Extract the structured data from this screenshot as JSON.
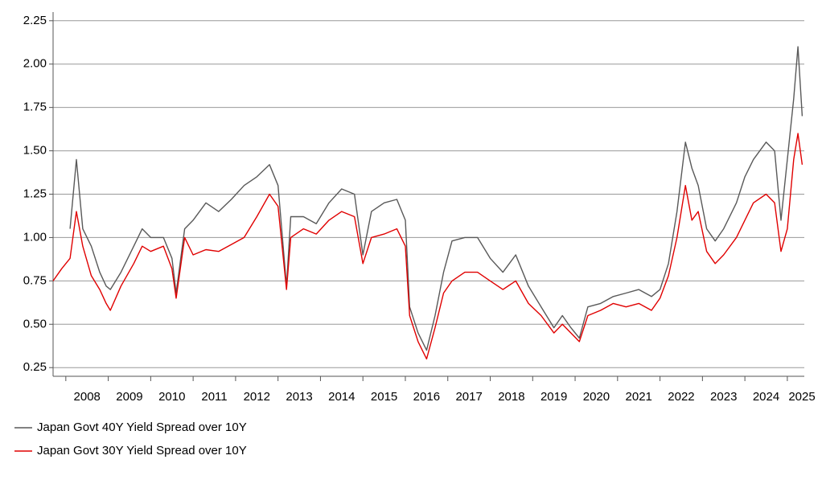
{
  "chart_data": {
    "type": "line",
    "x": [
      2007.7,
      2007.9,
      2008.1,
      2008.25,
      2008.4,
      2008.6,
      2008.8,
      2008.95,
      2009.05,
      2009.3,
      2009.6,
      2009.8,
      2010.0,
      2010.3,
      2010.5,
      2010.6,
      2010.8,
      2011.0,
      2011.3,
      2011.6,
      2011.9,
      2012.2,
      2012.5,
      2012.8,
      2013.0,
      2013.2,
      2013.3,
      2013.6,
      2013.9,
      2014.2,
      2014.5,
      2014.8,
      2015.0,
      2015.2,
      2015.5,
      2015.8,
      2016.0,
      2016.1,
      2016.3,
      2016.5,
      2016.7,
      2016.9,
      2017.1,
      2017.4,
      2017.7,
      2018.0,
      2018.3,
      2018.6,
      2018.9,
      2019.2,
      2019.5,
      2019.7,
      2019.9,
      2020.1,
      2020.3,
      2020.6,
      2020.9,
      2021.2,
      2021.5,
      2021.8,
      2022.0,
      2022.2,
      2022.4,
      2022.6,
      2022.75,
      2022.9,
      2023.1,
      2023.3,
      2023.5,
      2023.8,
      2024.0,
      2024.2,
      2024.5,
      2024.7,
      2024.85,
      2025.0,
      2025.15,
      2025.25,
      2025.35
    ],
    "series": [
      {
        "name": "Japan Govt 40Y Yield Spread over 10Y",
        "color": "#595959",
        "values": [
          null,
          null,
          1.05,
          1.45,
          1.05,
          0.95,
          0.8,
          0.72,
          0.7,
          0.8,
          0.95,
          1.05,
          1.0,
          1.0,
          0.88,
          0.68,
          1.05,
          1.1,
          1.2,
          1.15,
          1.22,
          1.3,
          1.35,
          1.42,
          1.3,
          0.72,
          1.12,
          1.12,
          1.08,
          1.2,
          1.28,
          1.25,
          0.9,
          1.15,
          1.2,
          1.22,
          1.1,
          0.6,
          0.45,
          0.35,
          0.55,
          0.8,
          0.98,
          1.0,
          1.0,
          0.88,
          0.8,
          0.9,
          0.72,
          0.6,
          0.48,
          0.55,
          0.48,
          0.42,
          0.6,
          0.62,
          0.66,
          0.68,
          0.7,
          0.66,
          0.7,
          0.85,
          1.15,
          1.55,
          1.4,
          1.3,
          1.05,
          0.98,
          1.05,
          1.2,
          1.35,
          1.45,
          1.55,
          1.5,
          1.1,
          1.45,
          1.8,
          2.1,
          1.7
        ]
      },
      {
        "name": "Japan Govt 30Y Yield Spread over 10Y",
        "color": "#e00000",
        "values": [
          0.75,
          0.82,
          0.88,
          1.15,
          0.95,
          0.78,
          0.7,
          0.62,
          0.58,
          0.72,
          0.85,
          0.95,
          0.92,
          0.95,
          0.82,
          0.65,
          1.0,
          0.9,
          0.93,
          0.92,
          0.96,
          1.0,
          1.12,
          1.25,
          1.18,
          0.7,
          1.0,
          1.05,
          1.02,
          1.1,
          1.15,
          1.12,
          0.85,
          1.0,
          1.02,
          1.05,
          0.95,
          0.55,
          0.4,
          0.3,
          0.48,
          0.68,
          0.75,
          0.8,
          0.8,
          0.75,
          0.7,
          0.75,
          0.62,
          0.55,
          0.45,
          0.5,
          0.45,
          0.4,
          0.55,
          0.58,
          0.62,
          0.6,
          0.62,
          0.58,
          0.65,
          0.78,
          1.0,
          1.3,
          1.1,
          1.15,
          0.92,
          0.85,
          0.9,
          1.0,
          1.1,
          1.2,
          1.25,
          1.2,
          0.92,
          1.05,
          1.45,
          1.6,
          1.42
        ]
      }
    ],
    "xlim": [
      2007.7,
      2025.4
    ],
    "xticks": [
      2008,
      2009,
      2010,
      2011,
      2012,
      2013,
      2014,
      2015,
      2016,
      2017,
      2018,
      2019,
      2020,
      2021,
      2022,
      2023,
      2024,
      2025
    ],
    "ylim": [
      0.2,
      2.3
    ],
    "yticks": [
      0.25,
      {
        "value": 0.5,
        "label": "0.50"
      },
      0.75,
      {
        "value": 1,
        "label": "1.00"
      },
      1.25,
      {
        "value": 1.5,
        "label": "1.50"
      },
      1.75,
      {
        "value": 2,
        "label": "2.00"
      },
      2.25
    ],
    "grid": true
  }
}
